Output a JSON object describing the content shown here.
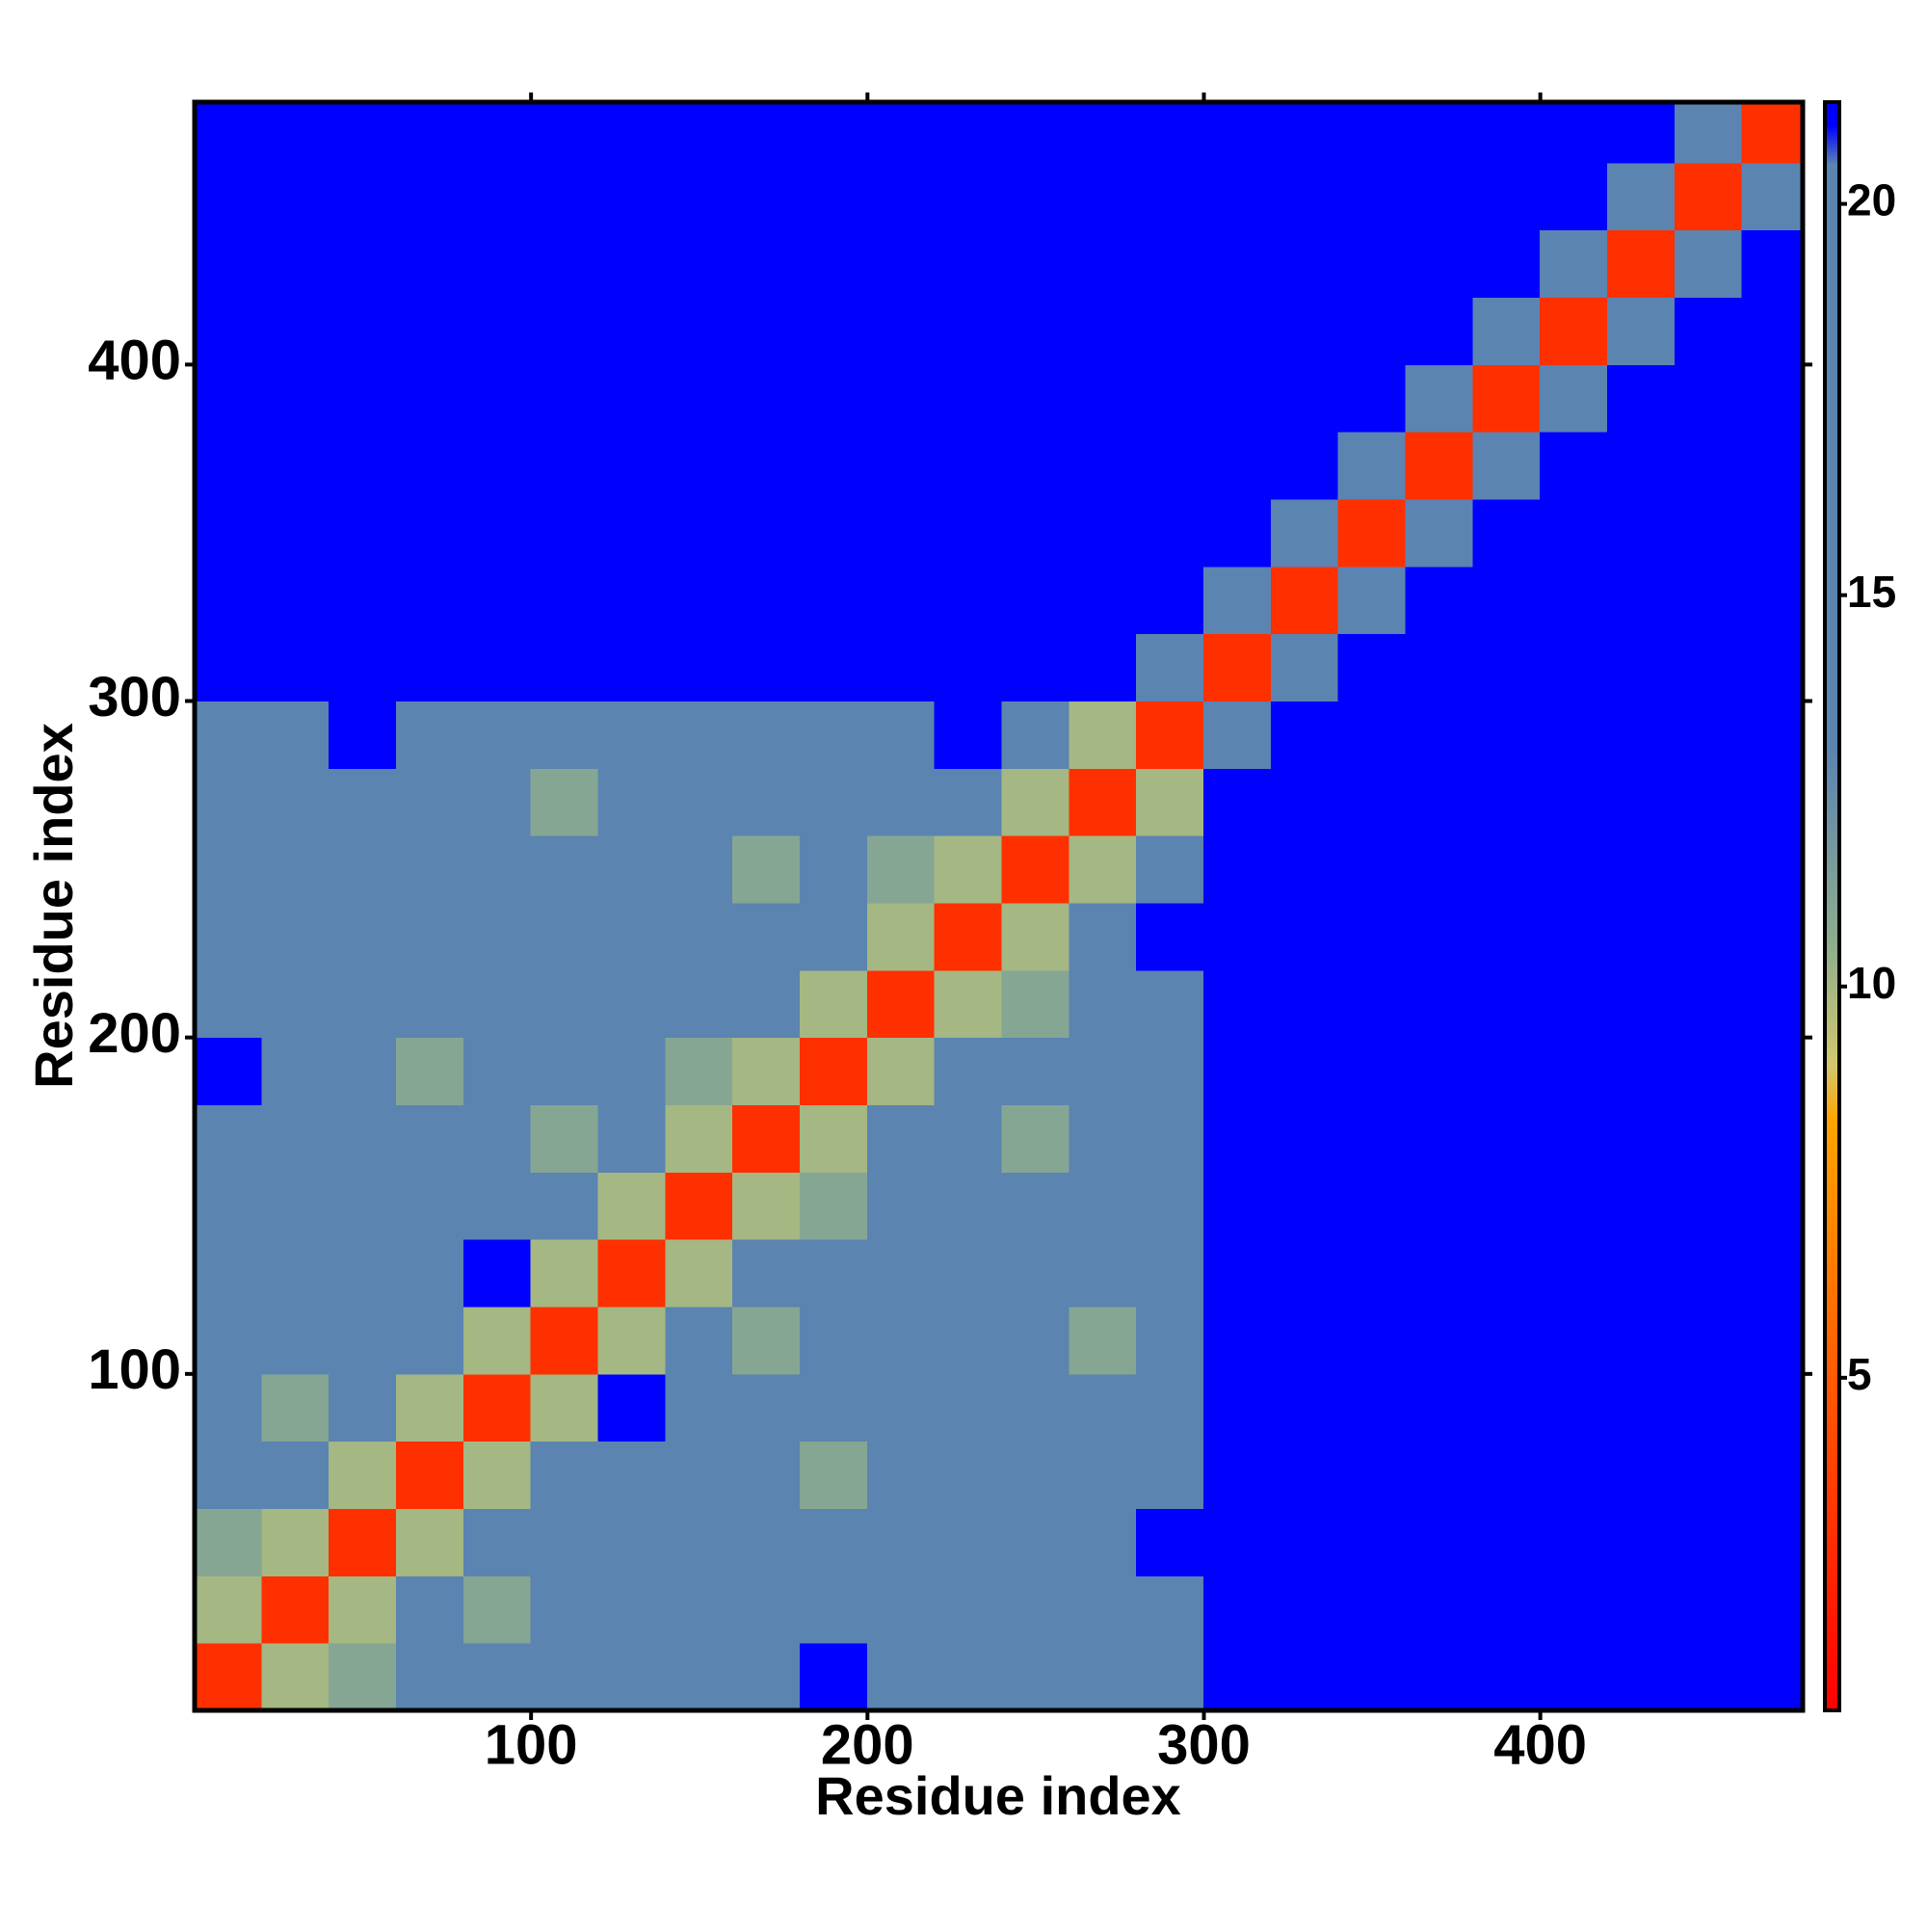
{
  "chart_data": {
    "type": "heatmap",
    "xlabel": "Residue index",
    "ylabel": "Residue index",
    "x": [
      10,
      30,
      50,
      70,
      90,
      110,
      130,
      150,
      170,
      190,
      210,
      230,
      250,
      270,
      290,
      310,
      330,
      350,
      370,
      390,
      410,
      430,
      450,
      470
    ],
    "y": [
      10,
      30,
      50,
      70,
      90,
      110,
      130,
      150,
      170,
      190,
      210,
      230,
      250,
      270,
      290,
      310,
      330,
      350,
      370,
      390,
      410,
      430,
      450,
      470
    ],
    "values": [
      [
        3,
        10,
        11,
        16,
        16,
        16,
        16,
        16,
        16,
        21,
        16,
        16,
        16,
        16,
        16,
        21,
        21,
        21,
        21,
        21,
        21,
        21,
        21,
        21
      ],
      [
        10,
        3,
        10,
        16,
        11,
        16,
        16,
        16,
        16,
        16,
        16,
        16,
        16,
        16,
        16,
        21,
        21,
        21,
        21,
        21,
        21,
        21,
        21,
        21
      ],
      [
        11,
        10,
        3,
        10,
        16,
        16,
        16,
        16,
        16,
        16,
        16,
        16,
        16,
        16,
        21,
        21,
        21,
        21,
        21,
        21,
        21,
        21,
        21,
        21
      ],
      [
        16,
        16,
        10,
        3,
        10,
        16,
        16,
        16,
        16,
        11,
        16,
        16,
        16,
        16,
        16,
        21,
        21,
        21,
        21,
        21,
        21,
        21,
        21,
        21
      ],
      [
        16,
        11,
        16,
        10,
        3,
        10,
        21,
        16,
        16,
        16,
        16,
        16,
        16,
        16,
        16,
        21,
        21,
        21,
        21,
        21,
        21,
        21,
        21,
        21
      ],
      [
        16,
        16,
        16,
        16,
        10,
        3,
        10,
        16,
        11,
        16,
        16,
        16,
        16,
        11,
        16,
        21,
        21,
        21,
        21,
        21,
        21,
        21,
        21,
        21
      ],
      [
        16,
        16,
        16,
        16,
        21,
        10,
        3,
        10,
        16,
        16,
        16,
        16,
        16,
        16,
        16,
        21,
        21,
        21,
        21,
        21,
        21,
        21,
        21,
        21
      ],
      [
        16,
        16,
        16,
        16,
        16,
        16,
        10,
        3,
        10,
        11,
        16,
        16,
        16,
        16,
        16,
        21,
        21,
        21,
        21,
        21,
        21,
        21,
        21,
        21
      ],
      [
        16,
        16,
        16,
        16,
        16,
        11,
        16,
        10,
        3,
        10,
        16,
        16,
        11,
        16,
        16,
        21,
        21,
        21,
        21,
        21,
        21,
        21,
        21,
        21
      ],
      [
        21,
        16,
        16,
        11,
        16,
        16,
        16,
        11,
        10,
        3,
        10,
        16,
        16,
        16,
        16,
        21,
        21,
        21,
        21,
        21,
        21,
        21,
        21,
        21
      ],
      [
        16,
        16,
        16,
        16,
        16,
        16,
        16,
        16,
        16,
        10,
        3,
        10,
        11,
        16,
        16,
        21,
        21,
        21,
        21,
        21,
        21,
        21,
        21,
        21
      ],
      [
        16,
        16,
        16,
        16,
        16,
        16,
        16,
        16,
        16,
        16,
        10,
        3,
        10,
        16,
        21,
        21,
        21,
        21,
        21,
        21,
        21,
        21,
        21,
        21
      ],
      [
        16,
        16,
        16,
        16,
        16,
        16,
        16,
        16,
        11,
        16,
        11,
        10,
        3,
        10,
        16,
        21,
        21,
        21,
        21,
        21,
        21,
        21,
        21,
        21
      ],
      [
        16,
        16,
        16,
        16,
        16,
        11,
        16,
        16,
        16,
        16,
        16,
        16,
        10,
        3,
        10,
        21,
        21,
        21,
        21,
        21,
        21,
        21,
        21,
        21
      ],
      [
        16,
        16,
        21,
        16,
        16,
        16,
        16,
        16,
        16,
        16,
        16,
        21,
        16,
        10,
        3,
        14,
        21,
        21,
        21,
        21,
        21,
        21,
        21,
        21
      ],
      [
        21,
        21,
        21,
        21,
        21,
        21,
        21,
        21,
        21,
        21,
        21,
        21,
        21,
        21,
        14,
        3,
        15,
        21,
        21,
        21,
        21,
        21,
        21,
        21
      ],
      [
        21,
        21,
        21,
        21,
        21,
        21,
        21,
        21,
        21,
        21,
        21,
        21,
        21,
        21,
        21,
        15,
        3,
        15,
        21,
        21,
        21,
        21,
        21,
        21
      ],
      [
        21,
        21,
        21,
        21,
        21,
        21,
        21,
        21,
        21,
        21,
        21,
        21,
        21,
        21,
        21,
        21,
        15,
        3,
        15,
        21,
        21,
        21,
        21,
        21
      ],
      [
        21,
        21,
        21,
        21,
        21,
        21,
        21,
        21,
        21,
        21,
        21,
        21,
        21,
        21,
        21,
        21,
        21,
        15,
        3,
        15,
        21,
        21,
        21,
        21
      ],
      [
        21,
        21,
        21,
        21,
        21,
        21,
        21,
        21,
        21,
        21,
        21,
        21,
        21,
        21,
        21,
        21,
        21,
        21,
        15,
        3,
        15,
        21,
        21,
        21
      ],
      [
        21,
        21,
        21,
        21,
        21,
        21,
        21,
        21,
        21,
        21,
        21,
        21,
        21,
        21,
        21,
        21,
        21,
        21,
        21,
        15,
        3,
        15,
        21,
        21
      ],
      [
        21,
        21,
        21,
        21,
        21,
        21,
        21,
        21,
        21,
        21,
        21,
        21,
        21,
        21,
        21,
        21,
        21,
        21,
        21,
        21,
        15,
        3,
        15,
        21
      ],
      [
        21,
        21,
        21,
        21,
        21,
        21,
        21,
        21,
        21,
        21,
        21,
        21,
        21,
        21,
        21,
        21,
        21,
        21,
        21,
        21,
        21,
        15,
        3,
        15
      ],
      [
        21,
        21,
        21,
        21,
        21,
        21,
        21,
        21,
        21,
        21,
        21,
        21,
        21,
        21,
        21,
        21,
        21,
        21,
        21,
        21,
        21,
        21,
        15,
        3
      ]
    ],
    "xlim": [
      0,
      478
    ],
    "ylim": [
      0,
      478
    ],
    "xticks": [
      100,
      200,
      300,
      400
    ],
    "yticks": [
      100,
      200,
      300,
      400
    ],
    "clim": [
      0.75,
      21.3
    ],
    "cticks": [
      5,
      10,
      15,
      20
    ],
    "colorscale": [
      [
        0.75,
        "#ff0000"
      ],
      [
        5,
        "#ff5a00"
      ],
      [
        8.3,
        "#ffa500"
      ],
      [
        9,
        "#d2c86e"
      ],
      [
        10.5,
        "#8fae8c"
      ],
      [
        13,
        "#5b84b1"
      ],
      [
        20.5,
        "#5b84b1"
      ],
      [
        21,
        "#0000ff"
      ],
      [
        21.3,
        "#0000ff"
      ]
    ]
  }
}
